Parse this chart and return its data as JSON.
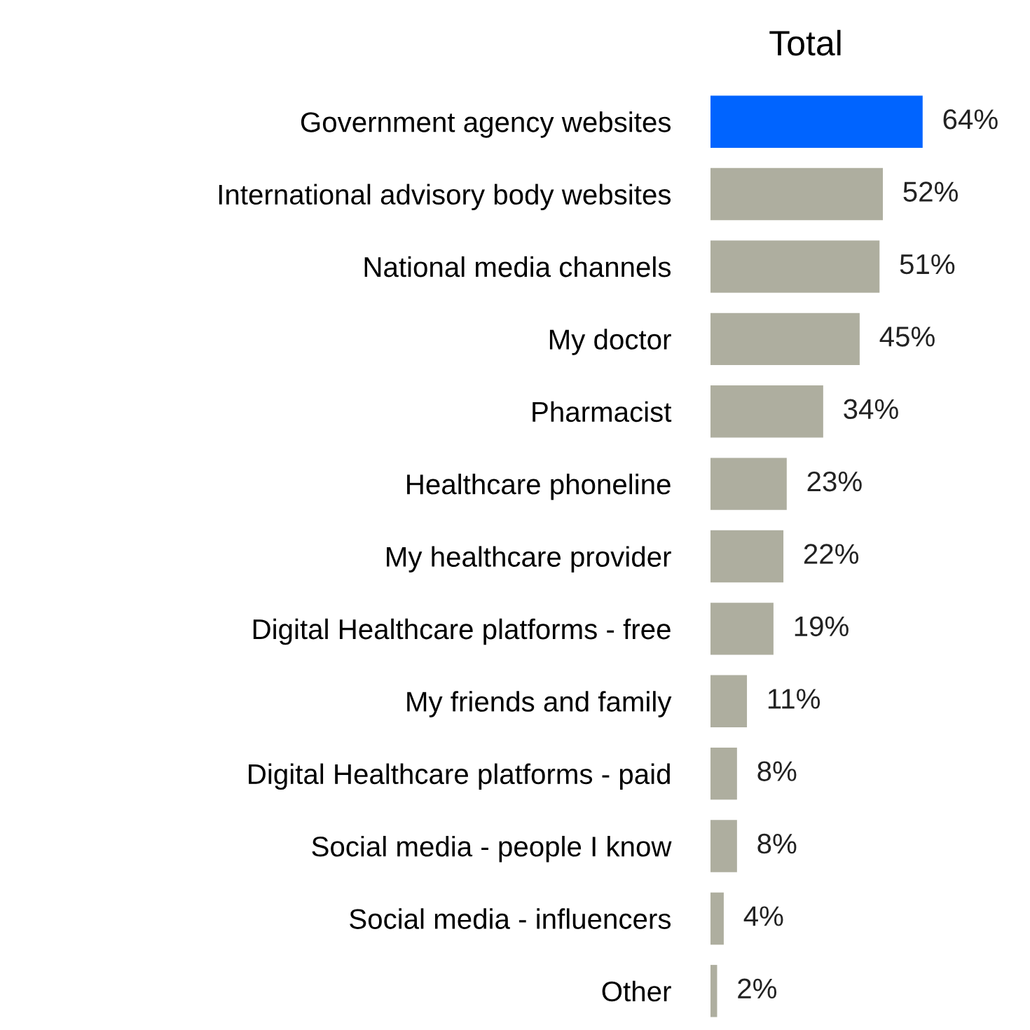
{
  "chart_data": {
    "type": "bar",
    "orientation": "horizontal",
    "title": "Total",
    "categories": [
      "Government agency websites",
      "International advisory body websites",
      "National media channels",
      "My doctor",
      "Pharmacist",
      "Healthcare phoneline",
      "My healthcare provider",
      "Digital Healthcare platforms - free",
      "My friends and family",
      "Digital Healthcare platforms - paid",
      "Social media - people I know",
      "Social media - influencers",
      "Other"
    ],
    "values": [
      64,
      52,
      51,
      45,
      34,
      23,
      22,
      19,
      11,
      8,
      8,
      4,
      2
    ],
    "value_labels": [
      "64%",
      "52%",
      "51%",
      "45%",
      "34%",
      "23%",
      "22%",
      "19%",
      "11%",
      "8%",
      "8%",
      "4%",
      "2%"
    ],
    "colors": [
      "#0064ff",
      "#aeae9f",
      "#aeae9f",
      "#aeae9f",
      "#aeae9f",
      "#aeae9f",
      "#aeae9f",
      "#aeae9f",
      "#aeae9f",
      "#aeae9f",
      "#aeae9f",
      "#aeae9f",
      "#aeae9f"
    ],
    "grid": false,
    "legend": false
  }
}
